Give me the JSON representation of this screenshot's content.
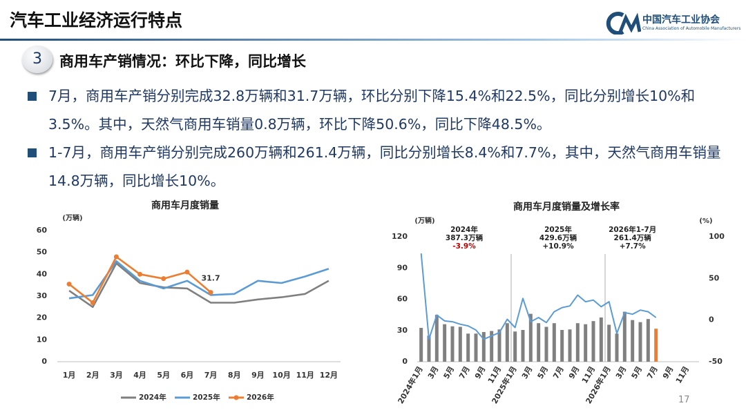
{
  "header": {
    "title": "汽车工业经济运行特点",
    "logo_cn": "中国汽车工业协会",
    "logo_en": "China Association of Automobile Manufacturers"
  },
  "section": {
    "number": "3",
    "title": "商用车产销情况：环比下降，同比增长"
  },
  "bullets": [
    "7月，商用车产销分别完成32.8万辆和31.7万辆，环比分别下降15.4%和22.5%，同比分别增长10%和3.5%。其中，天然气商用车销量0.8万辆，环比下降50.6%，同比下降48.5%。",
    "1-7月，商用车产销分别完成260万辆和261.4万辆，同比分别增长8.4%和7.7%，其中，天然气商用车销量14.8万辆，同比增长10%。"
  ],
  "page_number": "17",
  "chart_data": [
    {
      "type": "line",
      "title": "商用车月度销量",
      "y_label": "(万辆)",
      "categories": [
        "1月",
        "2月",
        "3月",
        "4月",
        "5月",
        "6月",
        "7月",
        "8月",
        "9月",
        "10月",
        "11月",
        "12月"
      ],
      "ylim": [
        0,
        60
      ],
      "yticks": [
        0,
        10,
        20,
        30,
        40,
        50,
        60
      ],
      "grid": false,
      "legend": "bottom",
      "series": [
        {
          "name": "2024年",
          "color": "#7f7f7f",
          "values": [
            32.5,
            25,
            45,
            36,
            34,
            33.5,
            27,
            27,
            28.5,
            29.5,
            31,
            37
          ]
        },
        {
          "name": "2025年",
          "color": "#5b9bd5",
          "values": [
            29,
            30.5,
            46,
            37,
            33.5,
            37,
            30.5,
            31,
            37,
            36,
            39,
            42.5
          ]
        },
        {
          "name": "2026年",
          "color": "#ed7d31",
          "markers": true,
          "values": [
            35.5,
            27,
            48,
            40,
            38,
            41,
            31.7,
            null,
            null,
            null,
            null,
            null
          ],
          "value_labels": [
            null,
            null,
            null,
            null,
            null,
            null,
            "31.7",
            null,
            null,
            null,
            null,
            null
          ]
        }
      ]
    },
    {
      "type": "bar",
      "title": "商用车月度销量及增长率",
      "y_label": "(万辆)",
      "y2_label": "(%)",
      "categories": [
        "2024年1月",
        null,
        "3月",
        null,
        "5月",
        null,
        "7月",
        null,
        "9月",
        null,
        "11月",
        null,
        "2025年1月",
        null,
        "3月",
        null,
        "5月",
        null,
        "7月",
        null,
        "9月",
        null,
        "11月",
        null,
        "2026年1月",
        null,
        "3月",
        null,
        "5月",
        null,
        "7月",
        null,
        "9月",
        null,
        "11月",
        null
      ],
      "ylim": [
        0,
        120
      ],
      "yticks": [
        0,
        30,
        60,
        90,
        120
      ],
      "y2lim": [
        -50,
        100
      ],
      "y2ticks": [
        -50,
        0,
        50,
        100
      ],
      "grid": false,
      "annotations": [
        {
          "lines": [
            "2024年",
            "387.3万辆",
            "-3.9%"
          ],
          "color": "#c00000"
        },
        {
          "lines": [
            "2025年",
            "429.6万辆",
            "+10.9%"
          ],
          "color": "#222222"
        },
        {
          "lines": [
            "2026年1-7月",
            "261.4万辆",
            "+7.7%"
          ],
          "color": "#222222"
        }
      ],
      "series": [
        {
          "type": "bar",
          "color": "#808080",
          "colors": [
            null,
            null,
            null,
            null,
            null,
            null,
            null,
            null,
            null,
            null,
            null,
            null,
            null,
            null,
            null,
            null,
            null,
            null,
            null,
            null,
            null,
            null,
            null,
            null,
            null,
            null,
            null,
            null,
            null,
            null,
            "#ed7d31",
            null,
            null,
            null,
            null,
            null
          ],
          "values": [
            32.5,
            25,
            45,
            36,
            34,
            33.5,
            27,
            27,
            28.5,
            29.5,
            31,
            37,
            29,
            30.5,
            46,
            37,
            33.5,
            37,
            30.5,
            31,
            37,
            36,
            39,
            42.5,
            35.5,
            27,
            48,
            40,
            38,
            41,
            31.7,
            null,
            null,
            null,
            null,
            null
          ]
        },
        {
          "type": "line",
          "axis": "y2",
          "color": "#5b9bd5",
          "values": [
            80,
            -23,
            6,
            -1,
            -2,
            -5,
            -7,
            -12,
            -23,
            -19,
            -15,
            1,
            -9,
            26,
            -2,
            3,
            -3,
            10,
            15,
            17,
            30,
            22,
            24,
            16,
            22,
            -16,
            9,
            7,
            12,
            10,
            3,
            null,
            null,
            null,
            null,
            null
          ]
        }
      ]
    }
  ]
}
